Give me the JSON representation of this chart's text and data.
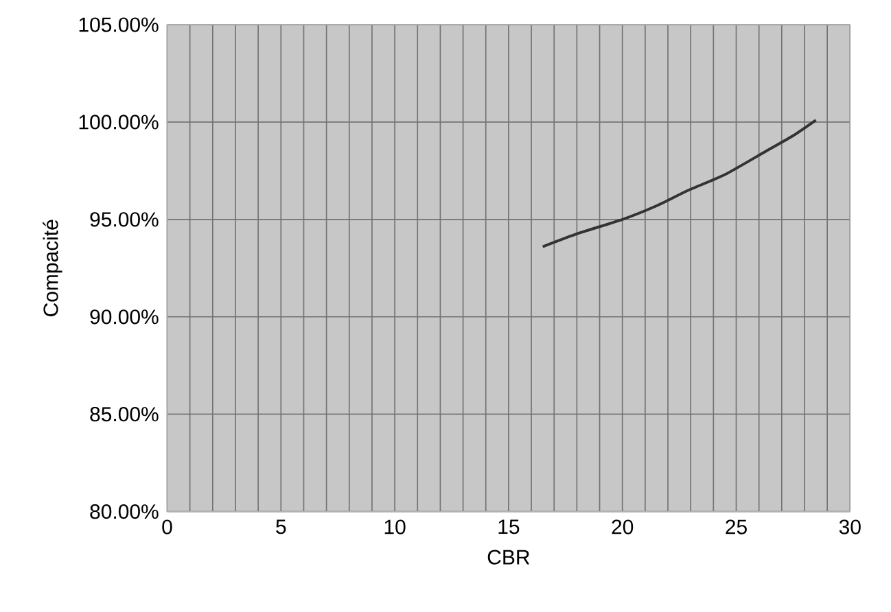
{
  "chart_data": {
    "type": "line",
    "xlabel": "CBR",
    "ylabel": "Compacité",
    "x": [
      16.5,
      18.1,
      20.0,
      21.5,
      22.9,
      24.5,
      26.3,
      27.5,
      28.5
    ],
    "series": [
      {
        "color": "#333333",
        "values": [
          93.6,
          94.3,
          95.0,
          95.7,
          96.5,
          97.3,
          98.5,
          99.3,
          100.1
        ]
      }
    ],
    "xlim": [
      0,
      30
    ],
    "xticks": [
      0,
      {
        "value": 1,
        "label": null
      },
      {
        "value": 2,
        "label": null
      },
      {
        "value": 3,
        "label": null
      },
      {
        "value": 4,
        "label": null
      },
      5,
      {
        "value": 6,
        "label": null
      },
      {
        "value": 7,
        "label": null
      },
      {
        "value": 8,
        "label": null
      },
      {
        "value": 9,
        "label": null
      },
      10,
      {
        "value": 11,
        "label": null
      },
      {
        "value": 12,
        "label": null
      },
      {
        "value": 13,
        "label": null
      },
      {
        "value": 14,
        "label": null
      },
      15,
      {
        "value": 16,
        "label": null
      },
      {
        "value": 17,
        "label": null
      },
      {
        "value": 18,
        "label": null
      },
      {
        "value": 19,
        "label": null
      },
      20,
      {
        "value": 21,
        "label": null
      },
      {
        "value": 22,
        "label": null
      },
      {
        "value": 23,
        "label": null
      },
      {
        "value": 24,
        "label": null
      },
      25,
      {
        "value": 26,
        "label": null
      },
      {
        "value": 27,
        "label": null
      },
      {
        "value": 28,
        "label": null
      },
      {
        "value": 29,
        "label": null
      },
      30
    ],
    "ylim": [
      80,
      105
    ],
    "yticks": [
      {
        "value": 80,
        "label": "80.00%"
      },
      {
        "value": 85,
        "label": "85.00%"
      },
      {
        "value": 90,
        "label": "90.00%"
      },
      {
        "value": 95,
        "label": "95.00%"
      },
      {
        "value": 100,
        "label": "100.00%"
      },
      {
        "value": 105,
        "label": "105.00%"
      }
    ],
    "grid": true,
    "marker": "none",
    "line_style": "solid"
  }
}
